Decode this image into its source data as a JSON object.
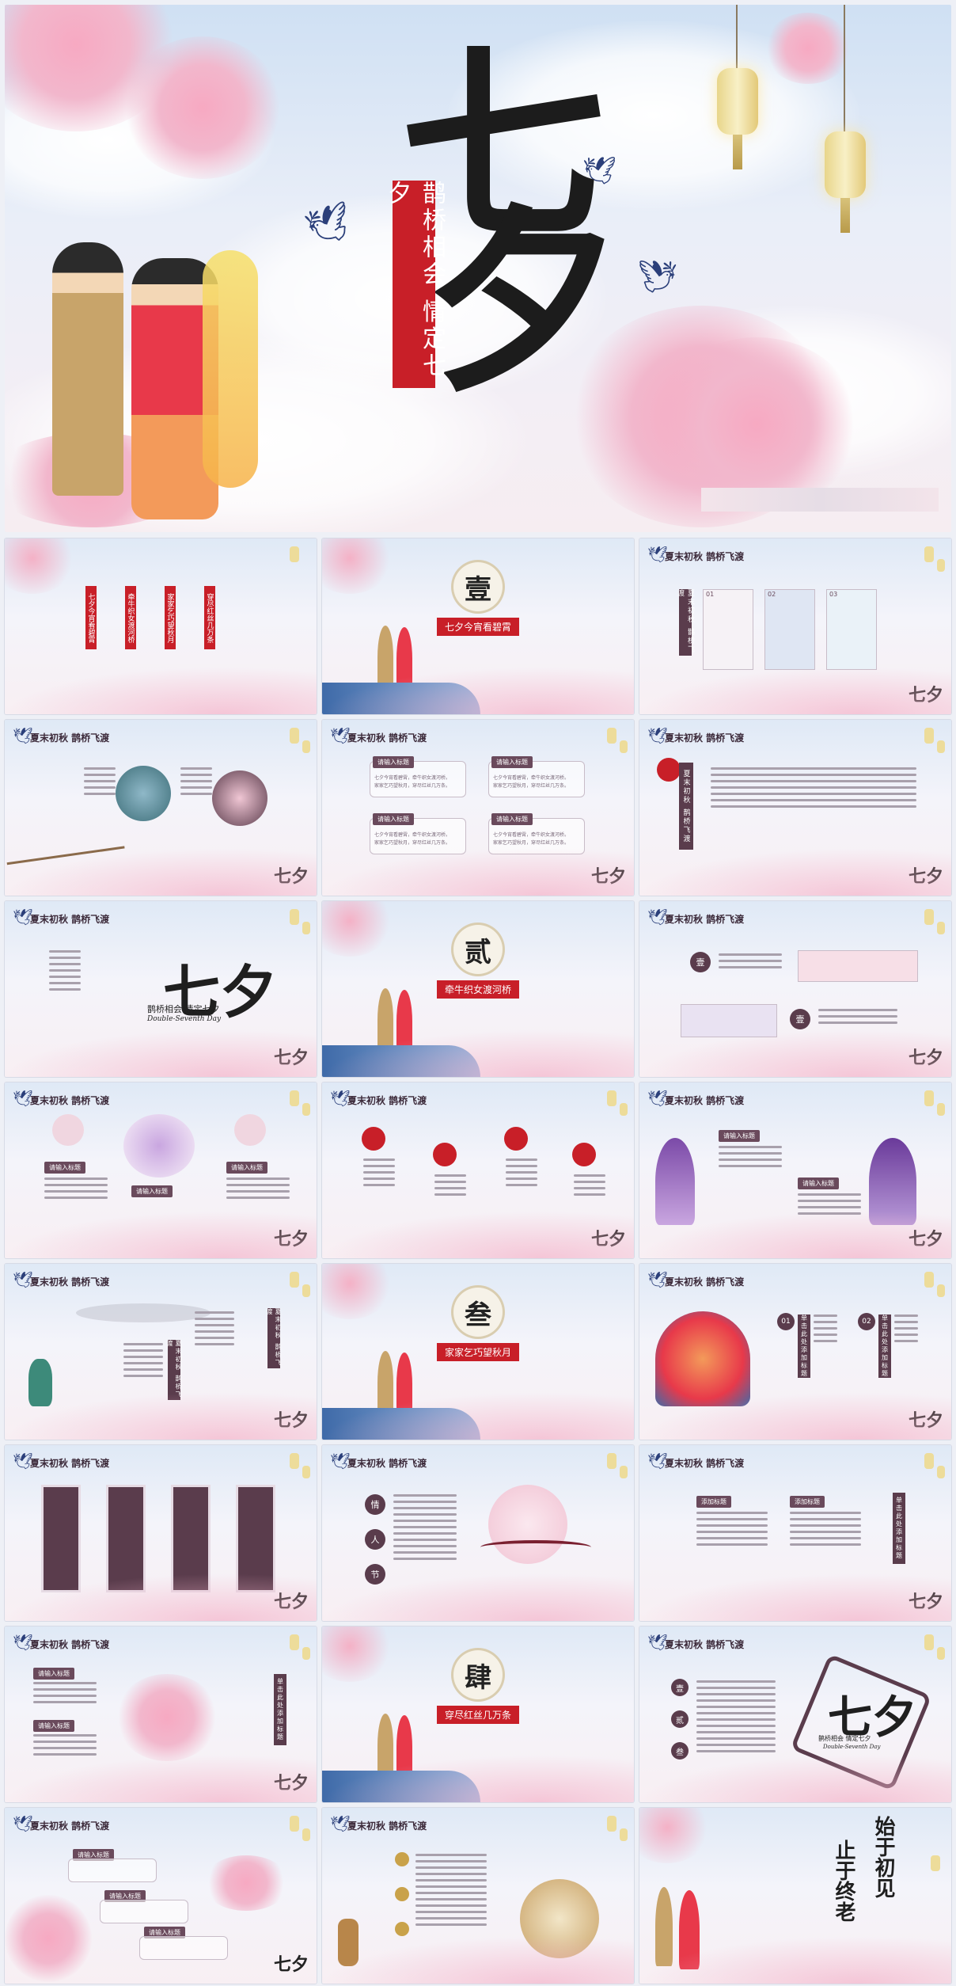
{
  "hero": {
    "big_char_1": "七",
    "big_char_2": "夕",
    "banner_text": "鹊桥相会 情定七夕"
  },
  "header_text": "夏末初秋 鹊桥飞渡",
  "watermark": "七夕",
  "slides": [
    {
      "id": "s1",
      "bars": [
        "七夕今宵看碧霄",
        "牵牛织女渡河桥",
        "家家乞巧望秋月",
        "穿尽红丝几万条"
      ]
    },
    {
      "id": "s2",
      "num": "壹",
      "title": "七夕今宵看碧霄"
    },
    {
      "id": "s3",
      "badges": [
        "01",
        "02",
        "03"
      ],
      "vertical": "夏末初秋 鹊桥飞渡"
    },
    {
      "id": "s4"
    },
    {
      "id": "s5",
      "pills": [
        "请输入标题",
        "请输入标题",
        "请输入标题",
        "请输入标题"
      ],
      "box_lines": [
        "七夕今宵看碧霄，牵牛织女渡河桥。",
        "家家乞巧望秋月，穿尽红丝几万条。"
      ]
    },
    {
      "id": "s6",
      "vertical": "夏末初秋 鹊桥飞渡"
    },
    {
      "id": "s7",
      "title_line": "鹊桥相会 情定七夕",
      "sub_line": "Double-Seventh Day"
    },
    {
      "id": "s8",
      "num": "贰",
      "title": "牵牛织女渡河桥"
    },
    {
      "id": "s9",
      "dots": [
        "壹",
        "壹"
      ]
    },
    {
      "id": "s10",
      "pills": [
        "请输入标题",
        "请输入标题",
        "请输入标题"
      ]
    },
    {
      "id": "s11"
    },
    {
      "id": "s12",
      "pills": [
        "请输入标题",
        "请输入标题"
      ]
    },
    {
      "id": "s13",
      "vertical_1": "夏末初秋 鹊桥飞渡",
      "vertical_2": "夏末初秋 鹊桥飞渡"
    },
    {
      "id": "s14",
      "num": "叁",
      "title": "家家乞巧望秋月"
    },
    {
      "id": "s15",
      "badges": [
        "01",
        "02"
      ],
      "vertical_1": "单击此处添加标题",
      "vertical_2": "单击此处添加标题"
    },
    {
      "id": "s16"
    },
    {
      "id": "s17",
      "dots": [
        "情",
        "人",
        "节"
      ]
    },
    {
      "id": "s18",
      "pills": [
        "添加标题",
        "添加标题"
      ],
      "vertical": "单击此处添加标题"
    },
    {
      "id": "s19",
      "pills": [
        "请输入标题",
        "请输入标题"
      ],
      "vertical": "单击此处添加标题"
    },
    {
      "id": "s20",
      "num": "肆",
      "title": "穿尽红丝几万条"
    },
    {
      "id": "s21",
      "dots": [
        "壹",
        "贰",
        "叁"
      ],
      "title_line": "鹊桥相会 情定七夕",
      "sub_line": "Double-Seventh Day"
    },
    {
      "id": "s22",
      "pills": [
        "请输入标题",
        "请输入标题",
        "请输入标题"
      ]
    },
    {
      "id": "s23"
    },
    {
      "id": "s24",
      "poem_1": "始于初见",
      "poem_2": "止于终老"
    }
  ]
}
